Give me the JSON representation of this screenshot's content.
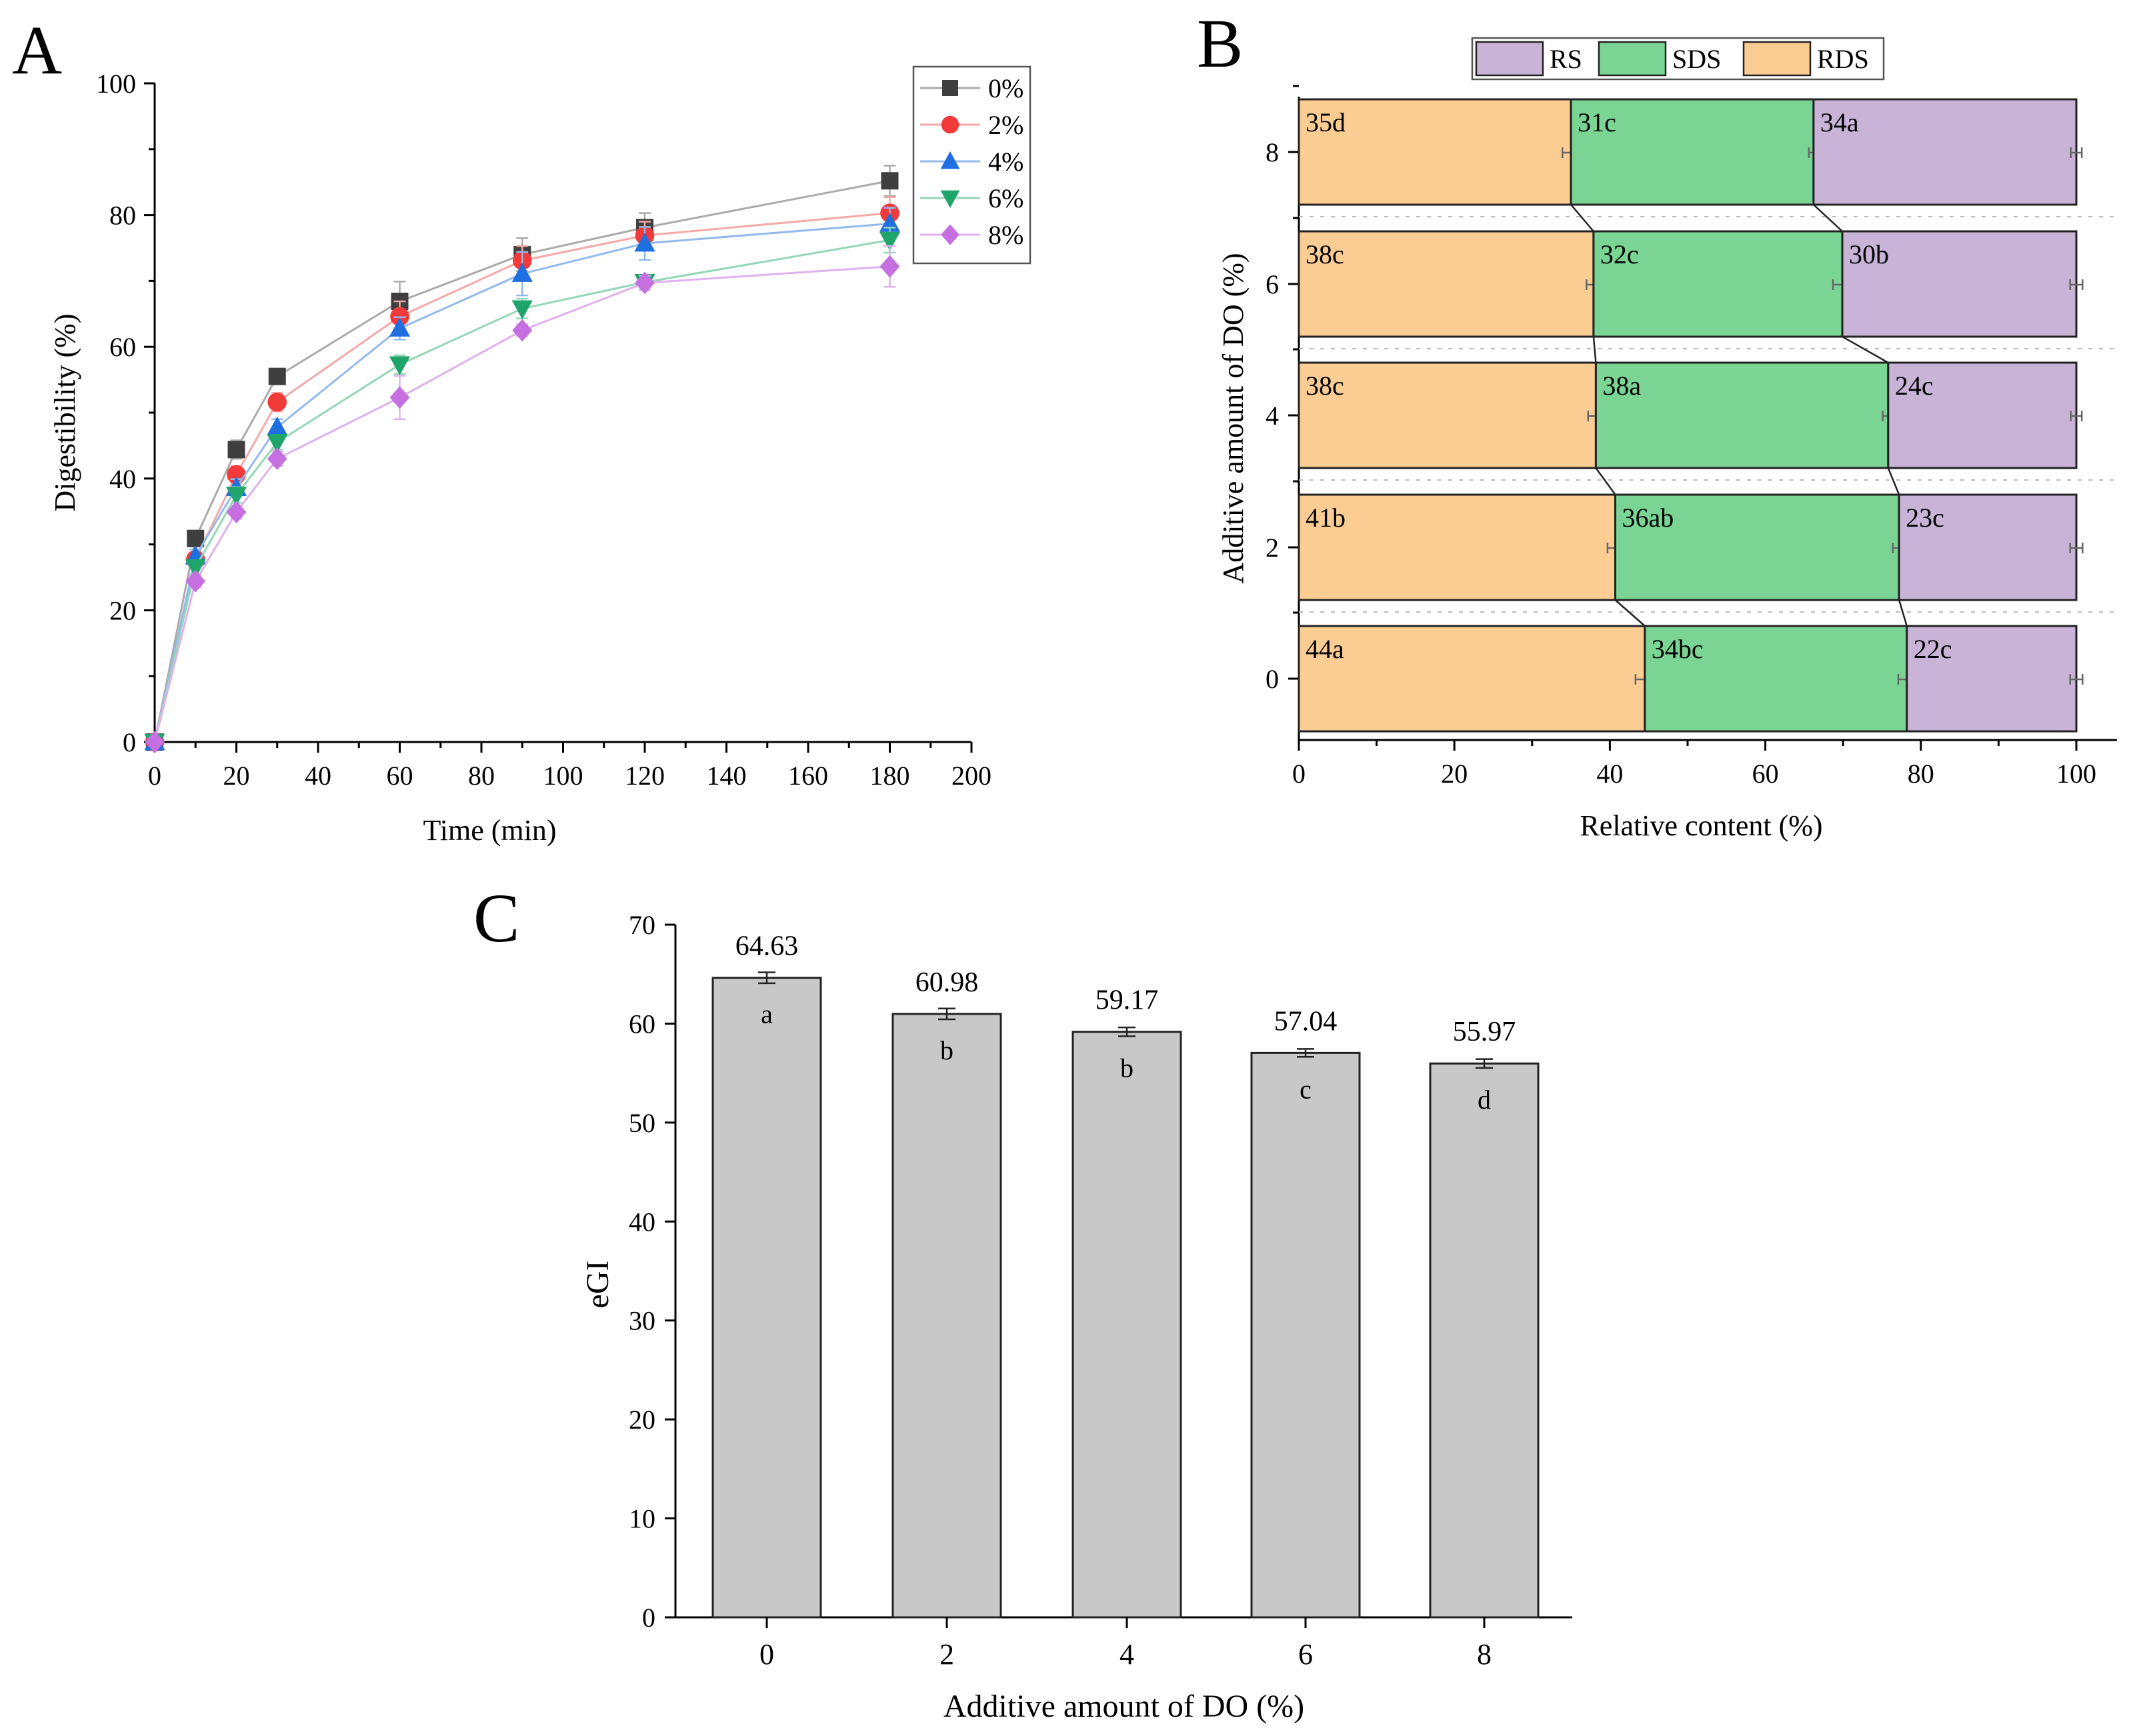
{
  "chart_data": [
    {
      "panel": "A",
      "type": "line",
      "xlabel": "Time (min)",
      "ylabel": "Digestibility (%)",
      "xlim": [
        0,
        200
      ],
      "ylim": [
        0,
        100
      ],
      "xticks": [
        0,
        20,
        40,
        60,
        80,
        100,
        120,
        140,
        160,
        180,
        200
      ],
      "yticks": [
        0,
        20,
        40,
        60,
        80,
        100
      ],
      "legend_position": "top-right",
      "x": [
        0,
        10,
        20,
        30,
        60,
        90,
        120,
        180
      ],
      "series": [
        {
          "name": "0%",
          "marker": "square",
          "color": "#3f3f3f",
          "line_color": "#aaaaaa",
          "values": [
            0,
            30.9,
            44.4,
            55.5,
            66.9,
            74.0,
            78.1,
            85.2
          ],
          "errors": [
            0,
            1.2,
            1.4,
            1.0,
            3.0,
            2.5,
            2.2,
            2.3
          ]
        },
        {
          "name": "2%",
          "marker": "circle",
          "color": "#f23a3a",
          "line_color": "#f5a8a8",
          "values": [
            0,
            27.7,
            40.6,
            51.6,
            64.6,
            73.1,
            76.9,
            80.3
          ],
          "errors": [
            0,
            1.1,
            1.3,
            1.4,
            2.3,
            2.2,
            2.1,
            2.4
          ]
        },
        {
          "name": "4%",
          "marker": "triangle-up",
          "color": "#1f6fe0",
          "line_color": "#92b9ec",
          "values": [
            0,
            28.2,
            38.6,
            47.8,
            62.8,
            71.1,
            75.7,
            78.7
          ],
          "errors": [
            0,
            1.0,
            1.3,
            1.2,
            1.7,
            3.3,
            2.5,
            2.4
          ]
        },
        {
          "name": "6%",
          "marker": "triangle-down",
          "color": "#1fa56c",
          "line_color": "#94d6b6",
          "values": [
            0,
            26.5,
            37.5,
            45.5,
            57.3,
            65.8,
            69.8,
            76.2
          ],
          "errors": [
            0,
            1.0,
            1.2,
            1.1,
            1.4,
            1.5,
            1.1,
            1.9
          ]
        },
        {
          "name": "8%",
          "marker": "diamond",
          "color": "#c56fe0",
          "line_color": "#dfb0ee",
          "values": [
            0,
            24.4,
            34.9,
            43.0,
            52.3,
            62.5,
            69.7,
            72.2
          ],
          "errors": [
            0,
            0.9,
            1.0,
            1.1,
            3.3,
            0.9,
            1.1,
            3.1
          ]
        }
      ]
    },
    {
      "panel": "B",
      "type": "bar",
      "orientation": "horizontal",
      "stacked": true,
      "xlabel": "Relative content (%)",
      "ylabel": "Additive amount of DO (%)",
      "xlim": [
        0,
        100
      ],
      "xticks": [
        0,
        20,
        40,
        60,
        80,
        100
      ],
      "categories": [
        "0",
        "2",
        "4",
        "6",
        "8"
      ],
      "legend_position": "top",
      "legend": [
        "RS",
        "SDS",
        "RDS"
      ],
      "series": [
        {
          "name": "RDS",
          "color": "#fccd92",
          "values": [
            44.5,
            40.7,
            38.2,
            37.9,
            35.0
          ],
          "labels": [
            "44a",
            "41b",
            "38c",
            "38c",
            "35d"
          ],
          "errors": [
            1.2,
            1.0,
            1.0,
            0.9,
            1.1
          ]
        },
        {
          "name": "SDS",
          "color": "#7ad594",
          "values": [
            33.7,
            36.5,
            37.6,
            32.0,
            31.2
          ],
          "labels": [
            "34bc",
            "36ab",
            "38a",
            "32c",
            "31c"
          ],
          "errors": [
            1.1,
            0.8,
            0.7,
            1.2,
            0.6
          ]
        },
        {
          "name": "RS",
          "color": "#c9b4d8",
          "values": [
            21.8,
            22.8,
            24.2,
            30.1,
            33.8
          ],
          "labels": [
            "22c",
            "23c",
            "24c",
            "30b",
            "34a"
          ],
          "errors": [
            0.8,
            0.8,
            0.7,
            0.8,
            0.7
          ]
        }
      ]
    },
    {
      "panel": "C",
      "type": "bar",
      "xlabel": "Additive amount of DO (%)",
      "ylabel": "eGI",
      "ylim": [
        0,
        70
      ],
      "yticks": [
        0,
        10,
        20,
        30,
        40,
        50,
        60,
        70
      ],
      "categories": [
        "0",
        "2",
        "4",
        "6",
        "8"
      ],
      "values": [
        64.63,
        60.98,
        59.17,
        57.04,
        55.97
      ],
      "value_labels": [
        "64.63",
        "60.98",
        "59.17",
        "57.04",
        "55.97"
      ],
      "significance": [
        "a",
        "b",
        "b",
        "c",
        "d"
      ],
      "errors": [
        0.55,
        0.55,
        0.45,
        0.4,
        0.45
      ],
      "bar_color": "#c8c8c8"
    }
  ],
  "panel_labels": {
    "a": "A",
    "b": "B",
    "c": "C"
  }
}
